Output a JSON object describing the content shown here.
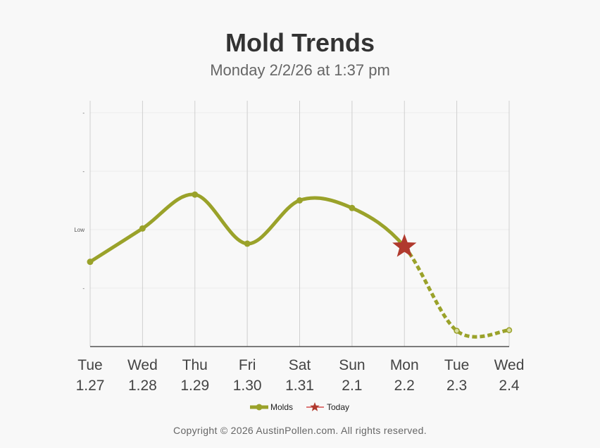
{
  "chart_data": {
    "type": "line",
    "title": "Mold Trends",
    "subtitle": "Monday 2/2/26 at 1:37 pm",
    "categories": [
      [
        "Tue",
        "1.27"
      ],
      [
        "Wed",
        "1.28"
      ],
      [
        "Thu",
        "1.29"
      ],
      [
        "Fri",
        "1.30"
      ],
      [
        "Sat",
        "1.31"
      ],
      [
        "Sun",
        "2.1"
      ],
      [
        "Mon",
        "2.2"
      ],
      [
        "Tue",
        "2.3"
      ],
      [
        "Wed",
        "2.4"
      ]
    ],
    "series": [
      {
        "name": "Molds",
        "color": "#9aa22a",
        "values": [
          1.45,
          2.02,
          2.6,
          1.76,
          2.5,
          2.37,
          1.71,
          0.27,
          0.28
        ],
        "forecast_from_index": 6
      }
    ],
    "today_index": 6,
    "today_label": "Today",
    "today_color": "#b03a2e",
    "ylim": [
      0,
      4
    ],
    "yticks": [
      {
        "value": 1,
        "label": "-"
      },
      {
        "value": 2,
        "label": "Low"
      },
      {
        "value": 3,
        "label": "-"
      },
      {
        "value": 4,
        "label": "-"
      }
    ],
    "grid": true,
    "legend": "bottom-center"
  },
  "footer": "Copyright © 2026 AustinPollen.com.  All rights reserved."
}
